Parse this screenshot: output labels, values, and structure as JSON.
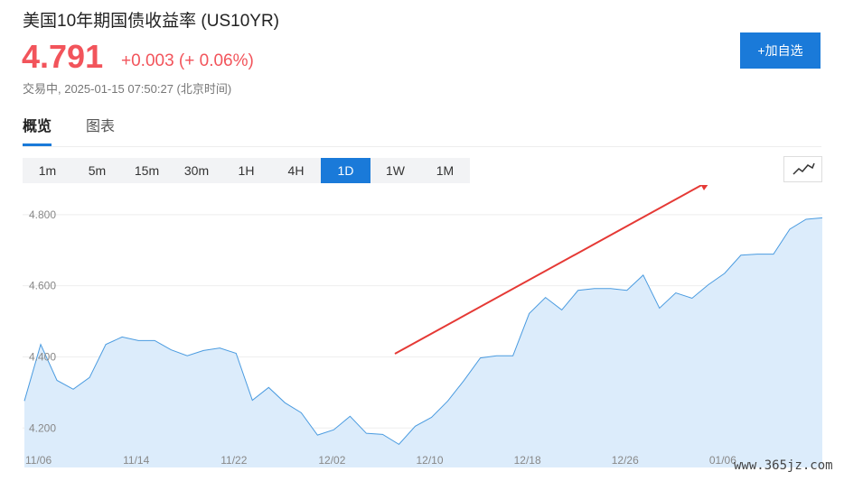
{
  "header": {
    "title": "美国10年期国债收益率 (US10YR)",
    "price": "4.791",
    "change": "+0.003 (+ 0.06%)",
    "status": "交易中, 2025-01-15 07:50:27 (北京时间)",
    "button": "+加自选"
  },
  "tabs": [
    {
      "label": "概览",
      "active": true
    },
    {
      "label": "图表",
      "active": false
    }
  ],
  "ranges": [
    {
      "label": "1m",
      "active": false
    },
    {
      "label": "5m",
      "active": false
    },
    {
      "label": "15m",
      "active": false
    },
    {
      "label": "30m",
      "active": false
    },
    {
      "label": "1H",
      "active": false
    },
    {
      "label": "4H",
      "active": false
    },
    {
      "label": "1D",
      "active": true
    },
    {
      "label": "1W",
      "active": false
    },
    {
      "label": "1M",
      "active": false
    }
  ],
  "watermark": "www.365jz.com",
  "chart_data": {
    "type": "area",
    "color": "#4a9be0",
    "fill": "#dcecfb",
    "grid": true,
    "categories": [
      "11/06",
      null,
      null,
      null,
      null,
      null,
      "11/14",
      null,
      null,
      null,
      null,
      null,
      "11/22",
      null,
      null,
      null,
      null,
      null,
      "12/02",
      null,
      null,
      null,
      null,
      null,
      "12/10",
      null,
      null,
      null,
      null,
      null,
      "12/18",
      null,
      null,
      null,
      null,
      null,
      "12/26",
      null,
      null,
      null,
      null,
      null,
      "01/06",
      null,
      null,
      null,
      null,
      null,
      null,
      null
    ],
    "values": [
      4.276,
      4.435,
      4.334,
      4.309,
      4.342,
      4.435,
      4.456,
      4.446,
      4.446,
      4.42,
      4.403,
      4.418,
      4.425,
      4.41,
      4.278,
      4.314,
      4.271,
      4.243,
      4.18,
      4.195,
      4.233,
      4.185,
      4.182,
      4.154,
      4.205,
      4.23,
      4.276,
      4.334,
      4.397,
      4.403,
      4.403,
      4.522,
      4.567,
      4.532,
      4.587,
      4.592,
      4.592,
      4.587,
      4.63,
      4.537,
      4.58,
      4.565,
      4.603,
      4.635,
      4.686,
      4.689,
      4.689,
      4.759,
      4.787,
      4.791
    ],
    "ylim": [
      4.089,
      4.858
    ],
    "yticks": [
      {
        "value": 4.2,
        "label": "4.200"
      },
      {
        "value": 4.4,
        "label": "4.400"
      },
      {
        "value": 4.6,
        "label": "4.600"
      },
      {
        "value": 4.8,
        "label": "4.800"
      }
    ]
  }
}
